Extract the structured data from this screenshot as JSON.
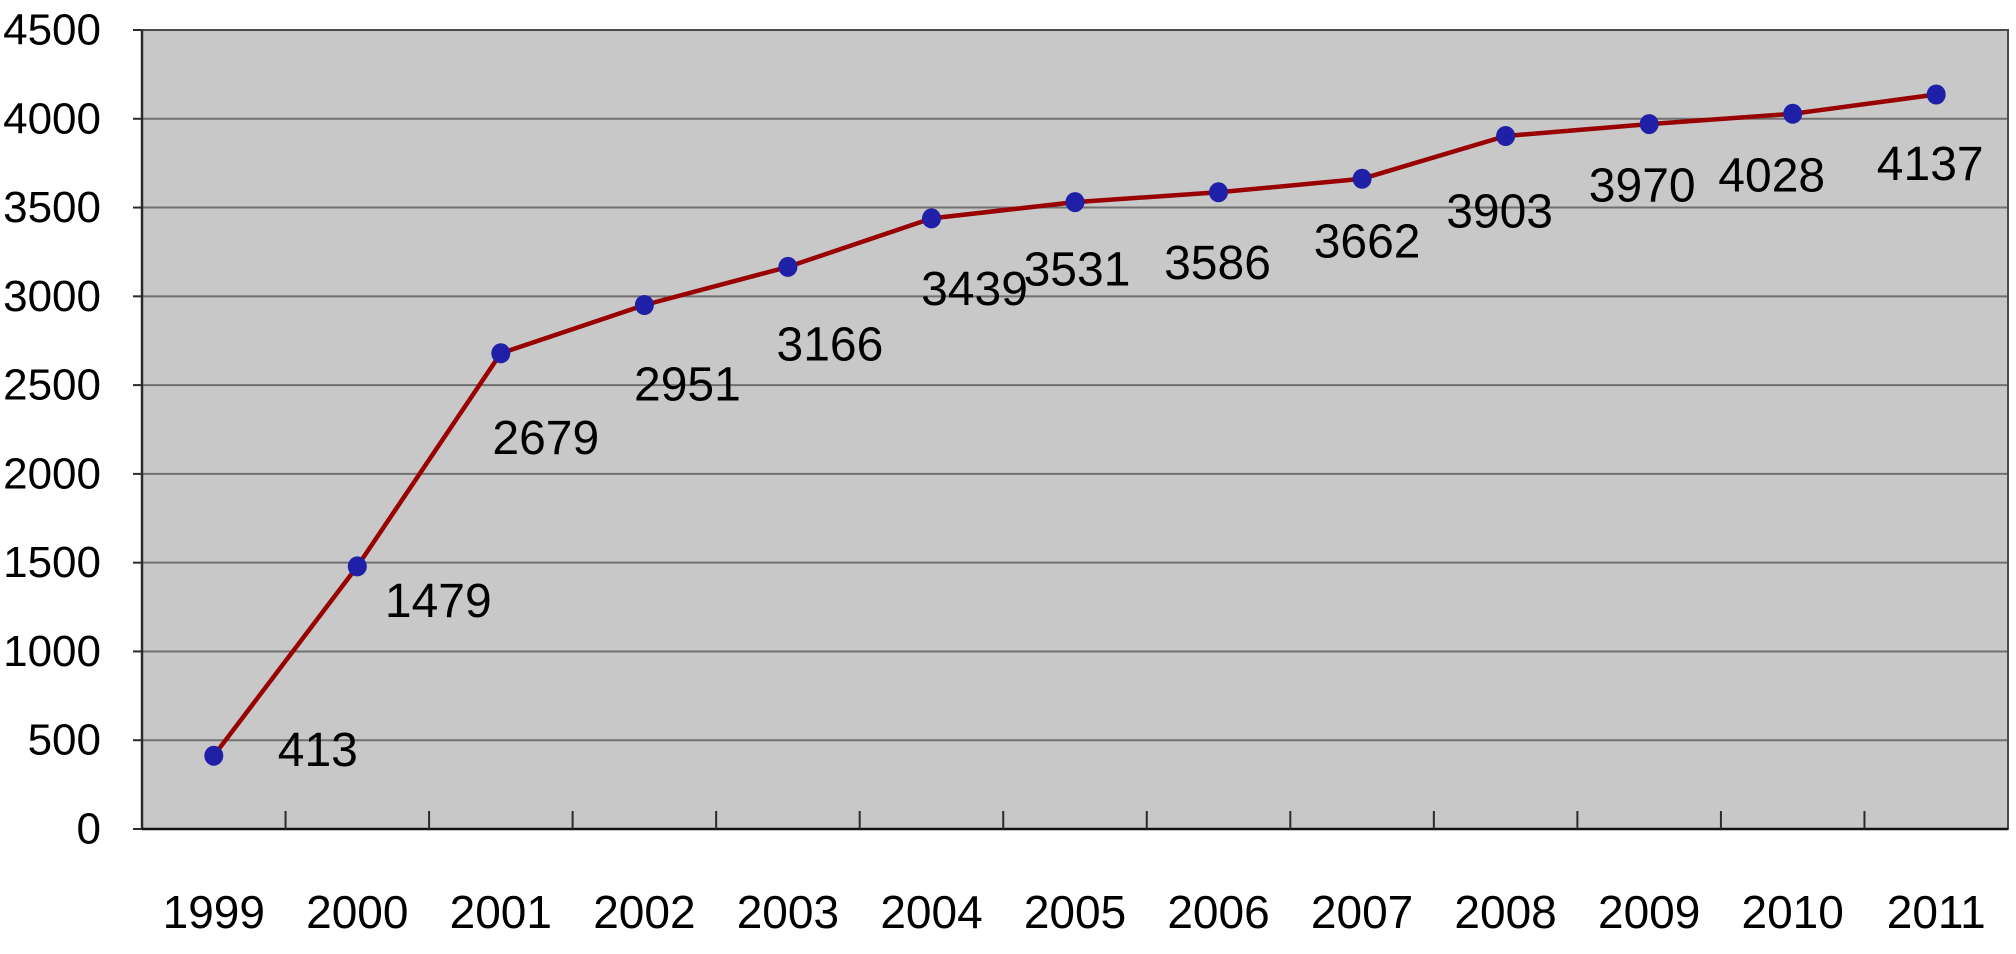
{
  "chart_data": {
    "type": "line",
    "title": "",
    "xlabel": "",
    "ylabel": "",
    "categories": [
      "1999",
      "2000",
      "2001",
      "2002",
      "2003",
      "2004",
      "2005",
      "2006",
      "2007",
      "2008",
      "2009",
      "2010",
      "2011"
    ],
    "series": [
      {
        "values": [
          413,
          1479,
          2679,
          2951,
          3166,
          3439,
          3531,
          3586,
          3662,
          3903,
          3970,
          4028,
          4137
        ],
        "data_labels": [
          "413",
          "1479",
          "2679",
          "2951",
          "3166",
          "3439",
          "3531",
          "3586",
          "3662",
          "3903",
          "3970",
          "4028",
          "4137"
        ]
      }
    ],
    "ylim": [
      0,
      4500
    ],
    "ytick_interval": 500,
    "ytick_labels": [
      "0",
      "500",
      "1000",
      "1500",
      "2000",
      "2500",
      "3000",
      "3500",
      "4000",
      "4500"
    ],
    "grid": "horizontal",
    "legend_position": "none",
    "marker_shape": "circle",
    "colors": {
      "line": "#990000",
      "marker": "#1F1FA8",
      "plot_background": "#C8C8C8",
      "gridline": "#707070",
      "axis": "#2B2B2B",
      "text": "#000000",
      "page_background": "#FFFFFF"
    }
  }
}
